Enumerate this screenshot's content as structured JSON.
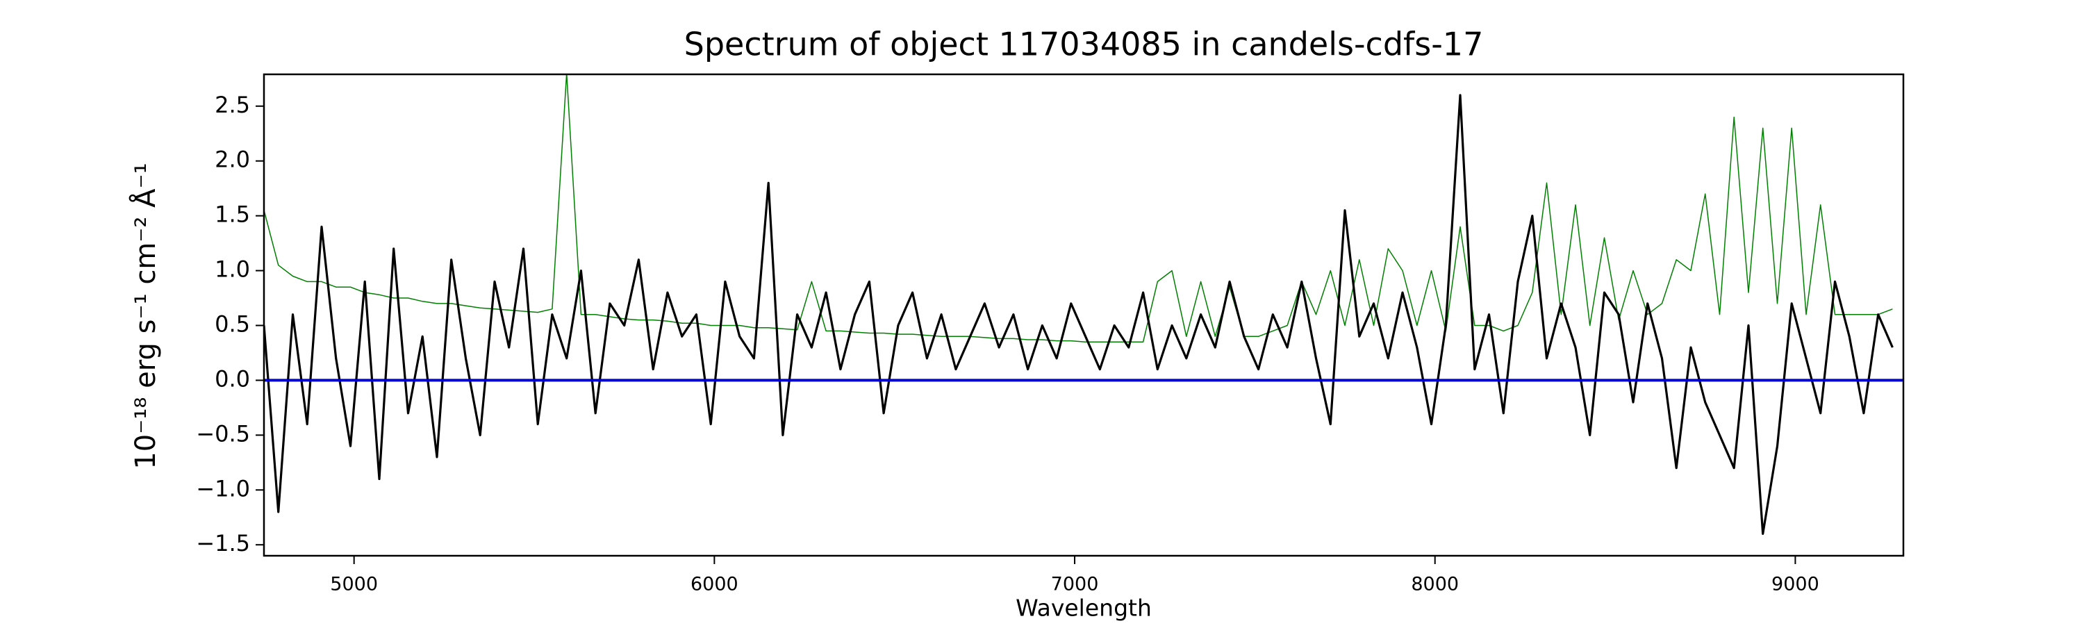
{
  "chart_data": {
    "type": "line",
    "title": "Spectrum of object 117034085 in candels-cdfs-17",
    "x_label": "Wavelength",
    "y_label": "10⁻¹⁸ erg s⁻¹ cm⁻² Å⁻¹",
    "x": [
      4750,
      4790,
      4830,
      4870,
      4910,
      4950,
      4990,
      5030,
      5070,
      5110,
      5150,
      5190,
      5230,
      5270,
      5310,
      5350,
      5390,
      5430,
      5470,
      5510,
      5550,
      5590,
      5630,
      5670,
      5710,
      5750,
      5790,
      5830,
      5870,
      5910,
      5950,
      5990,
      6030,
      6070,
      6110,
      6150,
      6190,
      6230,
      6270,
      6310,
      6350,
      6390,
      6430,
      6470,
      6510,
      6550,
      6590,
      6630,
      6670,
      6710,
      6750,
      6790,
      6830,
      6870,
      6910,
      6950,
      6990,
      7030,
      7070,
      7110,
      7150,
      7190,
      7230,
      7270,
      7310,
      7350,
      7390,
      7430,
      7470,
      7510,
      7550,
      7590,
      7630,
      7670,
      7710,
      7750,
      7790,
      7830,
      7870,
      7910,
      7950,
      7990,
      8030,
      8070,
      8110,
      8150,
      8190,
      8230,
      8270,
      8310,
      8350,
      8390,
      8430,
      8470,
      8510,
      8550,
      8590,
      8630,
      8670,
      8710,
      8750,
      8790,
      8830,
      8870,
      8910,
      8950,
      8990,
      9030,
      9070,
      9110,
      9150,
      9190,
      9230,
      9270
    ],
    "series": [
      {
        "color": "#008000",
        "values": [
          1.55,
          1.05,
          0.95,
          0.9,
          0.9,
          0.85,
          0.85,
          0.8,
          0.78,
          0.75,
          0.75,
          0.72,
          0.7,
          0.7,
          0.68,
          0.66,
          0.65,
          0.64,
          0.63,
          0.62,
          0.65,
          2.8,
          0.6,
          0.6,
          0.58,
          0.56,
          0.55,
          0.55,
          0.54,
          0.52,
          0.52,
          0.5,
          0.5,
          0.5,
          0.48,
          0.48,
          0.47,
          0.46,
          0.9,
          0.45,
          0.45,
          0.44,
          0.43,
          0.43,
          0.42,
          0.42,
          0.41,
          0.4,
          0.4,
          0.4,
          0.39,
          0.38,
          0.38,
          0.37,
          0.37,
          0.36,
          0.36,
          0.35,
          0.35,
          0.35,
          0.35,
          0.35,
          0.9,
          1.0,
          0.4,
          0.9,
          0.4,
          0.85,
          0.4,
          0.4,
          0.45,
          0.5,
          0.9,
          0.6,
          1.0,
          0.5,
          1.1,
          0.5,
          1.2,
          1.0,
          0.5,
          1.0,
          0.45,
          1.4,
          0.5,
          0.5,
          0.45,
          0.5,
          0.8,
          1.8,
          0.6,
          1.6,
          0.5,
          1.3,
          0.55,
          1.0,
          0.6,
          0.7,
          1.1,
          1.0,
          1.7,
          0.6,
          2.4,
          0.8,
          2.3,
          0.7,
          2.3,
          0.6,
          1.6,
          0.6,
          0.6,
          0.6,
          0.6,
          0.65
        ]
      },
      {
        "color": "#000000",
        "values": [
          0.5,
          -1.2,
          0.6,
          -0.4,
          1.4,
          0.2,
          -0.6,
          0.9,
          -0.9,
          1.2,
          -0.3,
          0.4,
          -0.7,
          1.1,
          0.2,
          -0.5,
          0.9,
          0.3,
          1.2,
          -0.4,
          0.6,
          0.2,
          1.0,
          -0.3,
          0.7,
          0.5,
          1.1,
          0.1,
          0.8,
          0.4,
          0.6,
          -0.4,
          0.9,
          0.4,
          0.2,
          1.8,
          -0.5,
          0.6,
          0.3,
          0.8,
          0.1,
          0.6,
          0.9,
          -0.3,
          0.5,
          0.8,
          0.2,
          0.6,
          0.1,
          0.4,
          0.7,
          0.3,
          0.6,
          0.1,
          0.5,
          0.2,
          0.7,
          0.4,
          0.1,
          0.5,
          0.3,
          0.8,
          0.1,
          0.5,
          0.2,
          0.6,
          0.3,
          0.9,
          0.4,
          0.1,
          0.6,
          0.3,
          0.9,
          0.2,
          -0.4,
          1.55,
          0.4,
          0.7,
          0.2,
          0.8,
          0.3,
          -0.4,
          0.5,
          2.6,
          0.1,
          0.6,
          -0.3,
          0.9,
          1.5,
          0.2,
          0.7,
          0.3,
          -0.5,
          0.8,
          0.6,
          -0.2,
          0.7,
          0.2,
          -0.8,
          0.3,
          -0.2,
          -0.5,
          -0.8,
          0.5,
          -1.4,
          -0.6,
          0.7,
          0.2,
          -0.3,
          0.9,
          0.4,
          -0.3,
          0.6,
          0.3
        ]
      }
    ],
    "hlines": [
      0
    ],
    "hline_color": "#0000cc",
    "xlim": [
      4750,
      9300
    ],
    "xticks": [
      5000,
      6000,
      7000,
      8000,
      9000
    ],
    "ylim": [
      -1.6,
      2.79
    ],
    "yticks": [
      {
        "value": -1.5,
        "label": "−1.5"
      },
      {
        "value": -1.0,
        "label": "−1.0"
      },
      {
        "value": -0.5,
        "label": "−0.5"
      },
      {
        "value": 0,
        "label": "0.0"
      },
      0.5,
      {
        "value": 1.0,
        "label": "1.0"
      },
      1.5,
      {
        "value": 2.0,
        "label": "2.0"
      },
      2.5
    ],
    "grid": false
  }
}
